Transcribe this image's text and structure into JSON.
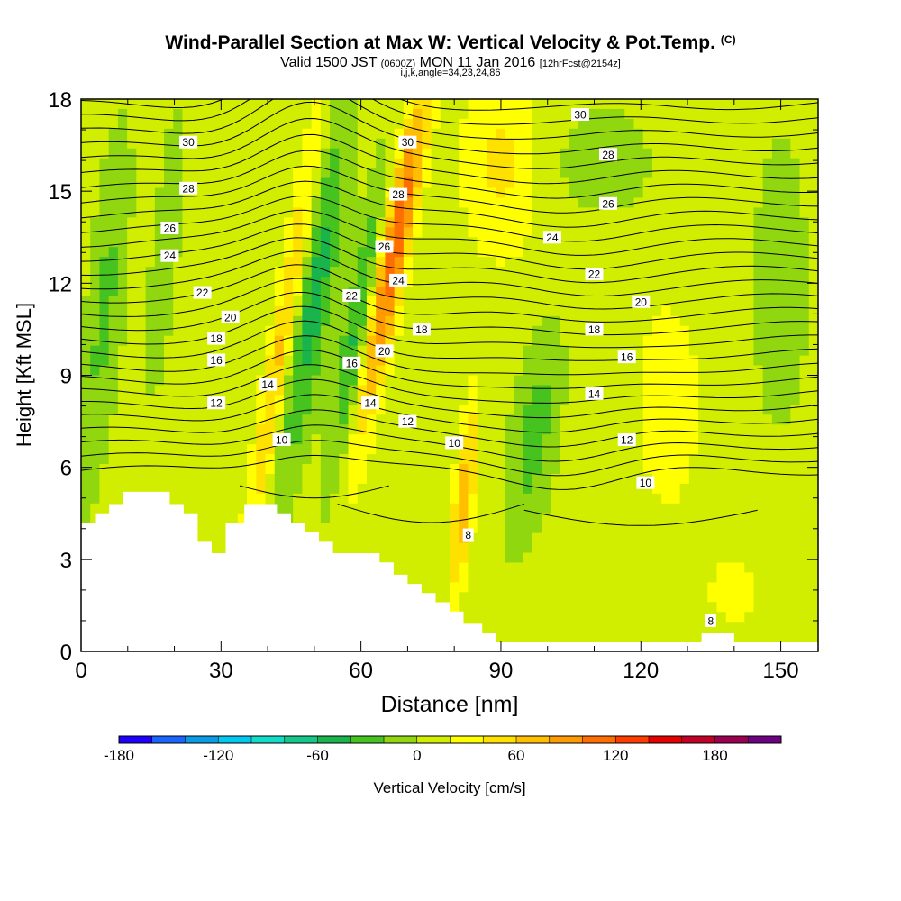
{
  "header": {
    "title": "Wind-Parallel Section at Max W: Vertical Velocity & Pot.Temp.",
    "copyright": "(C)",
    "valid_prefix": "Valid 1500 JST",
    "valid_utc": "(0600Z)",
    "valid_date": "MON 11 Jan 2016",
    "forecast": "[12hrFcst@2154z]",
    "params": "i,j,k,angle=34,23,24,86"
  },
  "chart_data": {
    "type": "heatmap",
    "title": "Wind-Parallel Section at Max W: Vertical Velocity & Pot.Temp.",
    "xlabel": "Distance [nm]",
    "ylabel": "Height [Kft MSL]",
    "xlim": [
      0,
      158
    ],
    "ylim": [
      0,
      18
    ],
    "x_ticks": [
      0,
      30,
      60,
      90,
      120,
      150
    ],
    "y_ticks": [
      0,
      3,
      6,
      9,
      12,
      15,
      18
    ],
    "colorbar": {
      "label": "Vertical Velocity [cm/s]",
      "ticks": [
        -180,
        -120,
        -60,
        0,
        60,
        120,
        180
      ],
      "range": [
        -180,
        220
      ],
      "colors": [
        "#1e00ff",
        "#1a64ff",
        "#0a9be6",
        "#00c8f0",
        "#10dcc8",
        "#14c88c",
        "#19b44b",
        "#46c31e",
        "#91d70f",
        "#d2ee00",
        "#ffff00",
        "#ffe100",
        "#ffbe00",
        "#ff9b00",
        "#ff6e00",
        "#ff3c00",
        "#e60000",
        "#c30028",
        "#9b0050",
        "#6e0082"
      ]
    },
    "w_field": {
      "background": 10,
      "features": [
        {
          "x": 50,
          "y": 11.5,
          "sx": 4,
          "sy": 6,
          "w": -60,
          "tilt": 0.35
        },
        {
          "x": 59,
          "y": 10.5,
          "sx": 3,
          "sy": 5,
          "w": -55,
          "tilt": 0.35
        },
        {
          "x": 43,
          "y": 10,
          "sx": 2.5,
          "sy": 7,
          "w": 60,
          "tilt": 0.35
        },
        {
          "x": 67,
          "y": 13,
          "sx": 3,
          "sy": 5.5,
          "w": 110,
          "tilt": 0.4
        },
        {
          "x": 82,
          "y": 5,
          "sx": 2,
          "sy": 3,
          "w": 70,
          "tilt": 0.2
        },
        {
          "x": 97,
          "y": 7,
          "sx": 5,
          "sy": 3.5,
          "w": -40,
          "tilt": 0.3
        },
        {
          "x": 112,
          "y": 16,
          "sx": 12,
          "sy": 2,
          "w": -20,
          "tilt": 0
        },
        {
          "x": 90,
          "y": 16,
          "sx": 8,
          "sy": 3,
          "w": 35,
          "tilt": 0
        },
        {
          "x": 5,
          "y": 11,
          "sx": 4,
          "sy": 6,
          "w": -35,
          "tilt": 0.2
        },
        {
          "x": 18,
          "y": 13,
          "sx": 3,
          "sy": 5,
          "w": -25,
          "tilt": 0.2
        },
        {
          "x": 126,
          "y": 8,
          "sx": 6,
          "sy": 3,
          "w": 30,
          "tilt": 0
        },
        {
          "x": 150,
          "y": 12,
          "sx": 6,
          "sy": 5,
          "w": -25,
          "tilt": 0
        },
        {
          "x": 140,
          "y": 2,
          "sx": 8,
          "sy": 1.5,
          "w": 15,
          "tilt": 0
        }
      ]
    },
    "theta_contours": {
      "levels_labeled": [
        8,
        10,
        12,
        14,
        16,
        18,
        20,
        22,
        24,
        26,
        28,
        30
      ],
      "labels": [
        {
          "text": "30",
          "x": 23,
          "y": 16.6
        },
        {
          "text": "28",
          "x": 23,
          "y": 15.1
        },
        {
          "text": "26",
          "x": 19,
          "y": 13.8
        },
        {
          "text": "24",
          "x": 19,
          "y": 12.9
        },
        {
          "text": "22",
          "x": 26,
          "y": 11.7
        },
        {
          "text": "20",
          "x": 32,
          "y": 10.9
        },
        {
          "text": "18",
          "x": 29,
          "y": 10.2
        },
        {
          "text": "16",
          "x": 29,
          "y": 9.5
        },
        {
          "text": "14",
          "x": 40,
          "y": 8.7
        },
        {
          "text": "12",
          "x": 29,
          "y": 8.1
        },
        {
          "text": "10",
          "x": 43,
          "y": 6.9
        },
        {
          "text": "26",
          "x": 65,
          "y": 13.2
        },
        {
          "text": "24",
          "x": 68,
          "y": 12.1
        },
        {
          "text": "22",
          "x": 58,
          "y": 11.6
        },
        {
          "text": "20",
          "x": 65,
          "y": 9.8
        },
        {
          "text": "18",
          "x": 73,
          "y": 10.5
        },
        {
          "text": "16",
          "x": 58,
          "y": 9.4
        },
        {
          "text": "14",
          "x": 62,
          "y": 8.1
        },
        {
          "text": "12",
          "x": 70,
          "y": 7.5
        },
        {
          "text": "10",
          "x": 80,
          "y": 6.8
        },
        {
          "text": "8",
          "x": 83,
          "y": 3.8
        },
        {
          "text": "30",
          "x": 70,
          "y": 16.6
        },
        {
          "text": "28",
          "x": 68,
          "y": 14.9
        },
        {
          "text": "30",
          "x": 107,
          "y": 17.5
        },
        {
          "text": "28",
          "x": 113,
          "y": 16.2
        },
        {
          "text": "26",
          "x": 113,
          "y": 14.6
        },
        {
          "text": "24",
          "x": 101,
          "y": 13.5
        },
        {
          "text": "22",
          "x": 110,
          "y": 12.3
        },
        {
          "text": "20",
          "x": 120,
          "y": 11.4
        },
        {
          "text": "18",
          "x": 110,
          "y": 10.5
        },
        {
          "text": "16",
          "x": 117,
          "y": 9.6
        },
        {
          "text": "14",
          "x": 110,
          "y": 8.4
        },
        {
          "text": "12",
          "x": 117,
          "y": 6.9
        },
        {
          "text": "10",
          "x": 121,
          "y": 5.5
        },
        {
          "text": "8",
          "x": 135,
          "y": 1.0
        }
      ]
    },
    "terrain_kft": [
      [
        0,
        4.2
      ],
      [
        3,
        4.2
      ],
      [
        3,
        4.5
      ],
      [
        6,
        4.5
      ],
      [
        6,
        4.8
      ],
      [
        9,
        4.8
      ],
      [
        9,
        5.2
      ],
      [
        19,
        5.2
      ],
      [
        19,
        4.8
      ],
      [
        22,
        4.8
      ],
      [
        22,
        4.5
      ],
      [
        25,
        4.5
      ],
      [
        25,
        3.6
      ],
      [
        28,
        3.6
      ],
      [
        28,
        3.2
      ],
      [
        31,
        3.2
      ],
      [
        31,
        4.2
      ],
      [
        35,
        4.2
      ],
      [
        35,
        4.8
      ],
      [
        42,
        4.8
      ],
      [
        42,
        4.5
      ],
      [
        45,
        4.5
      ],
      [
        45,
        4.2
      ],
      [
        48,
        4.2
      ],
      [
        48,
        3.9
      ],
      [
        51,
        3.9
      ],
      [
        51,
        3.6
      ],
      [
        54,
        3.6
      ],
      [
        54,
        3.2
      ],
      [
        64,
        3.2
      ],
      [
        64,
        2.9
      ],
      [
        67,
        2.9
      ],
      [
        67,
        2.5
      ],
      [
        70,
        2.5
      ],
      [
        70,
        2.2
      ],
      [
        73,
        2.2
      ],
      [
        73,
        1.9
      ],
      [
        76,
        1.9
      ],
      [
        76,
        1.6
      ],
      [
        79,
        1.6
      ],
      [
        79,
        1.3
      ],
      [
        82,
        1.3
      ],
      [
        82,
        0.9
      ],
      [
        86,
        0.9
      ],
      [
        86,
        0.6
      ],
      [
        89,
        0.6
      ],
      [
        89,
        0.3
      ],
      [
        133,
        0.3
      ],
      [
        133,
        0.6
      ],
      [
        140,
        0.6
      ],
      [
        140,
        0.3
      ],
      [
        158,
        0.3
      ]
    ]
  }
}
